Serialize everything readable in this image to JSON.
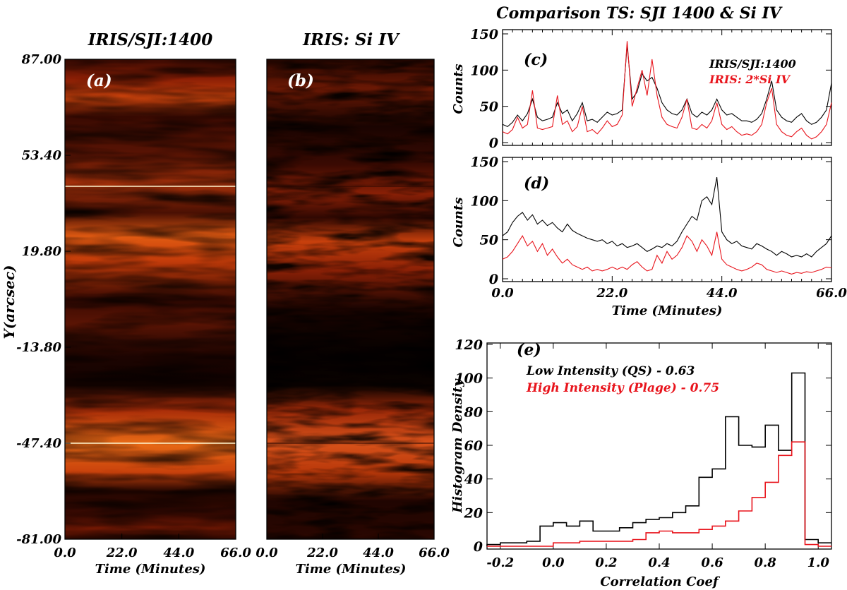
{
  "figure": {
    "title_left_a": "IRIS/SJI:1400",
    "title_left_b": "IRIS: Si IV",
    "title_right": "Comparison TS: SJI 1400 & Si IV",
    "y_axis_label": "Y(arcsec)"
  },
  "colors": {
    "black": "#000000",
    "red": "#e8141c"
  },
  "chart_data": [
    {
      "id": "a",
      "type": "heatmap",
      "panel_label": "(a)",
      "title": "IRIS/SJI:1400",
      "xlabel": "Time (Minutes)",
      "ylabel": "Y(arcsec)",
      "xlim": [
        0,
        66
      ],
      "ylim": [
        -81,
        87
      ],
      "x_ticks": [
        "0.0",
        "22.0",
        "44.0",
        "66.0"
      ],
      "y_ticks": [
        "87.00",
        "53.40",
        "19.80",
        "-13.80",
        "-47.40",
        "-81.00"
      ],
      "colormap": "hot (black-red-yellow-white)"
    },
    {
      "id": "b",
      "type": "heatmap",
      "panel_label": "(b)",
      "title": "IRIS: Si IV",
      "xlabel": "Time (Minutes)",
      "xlim": [
        0,
        66
      ],
      "ylim": [
        -81,
        87
      ],
      "x_ticks": [
        "0.0",
        "22.0",
        "44.0",
        "66.0"
      ],
      "colormap": "hot (black-red-yellow-white)"
    },
    {
      "id": "c",
      "type": "line",
      "panel_label": "(c)",
      "title": "Comparison TS: SJI 1400 & Si IV",
      "ylabel": "Counts",
      "xlim": [
        0,
        66
      ],
      "ylim": [
        0,
        150
      ],
      "y_ticks": [
        "0",
        "50",
        "100",
        "150"
      ],
      "legend": [
        "IRIS/SJI:1400",
        "IRIS: 2*Si IV"
      ],
      "x": [
        0,
        1,
        2,
        3,
        4,
        5,
        6,
        7,
        8,
        9,
        10,
        11,
        12,
        13,
        14,
        15,
        16,
        17,
        18,
        19,
        20,
        21,
        22,
        23,
        24,
        25,
        26,
        27,
        28,
        29,
        30,
        31,
        32,
        33,
        34,
        35,
        36,
        37,
        38,
        39,
        40,
        41,
        42,
        43,
        44,
        45,
        46,
        47,
        48,
        49,
        50,
        51,
        52,
        53,
        54,
        55,
        56,
        57,
        58,
        59,
        60,
        61,
        62,
        63,
        64,
        65,
        66
      ],
      "series": [
        {
          "name": "IRIS/SJI:1400",
          "color": "#000000",
          "values": [
            25,
            22,
            28,
            38,
            30,
            40,
            60,
            35,
            30,
            32,
            35,
            55,
            40,
            45,
            30,
            40,
            55,
            30,
            32,
            28,
            35,
            42,
            38,
            40,
            45,
            135,
            60,
            70,
            95,
            85,
            90,
            75,
            55,
            45,
            40,
            38,
            45,
            60,
            40,
            35,
            42,
            38,
            45,
            60,
            45,
            38,
            40,
            35,
            30,
            30,
            28,
            32,
            40,
            60,
            85,
            45,
            35,
            30,
            28,
            35,
            40,
            30,
            25,
            28,
            35,
            45,
            82
          ]
        },
        {
          "name": "IRIS: 2*Si IV",
          "color": "#e8141c",
          "values": [
            15,
            12,
            18,
            35,
            20,
            25,
            72,
            20,
            18,
            20,
            22,
            65,
            25,
            30,
            15,
            22,
            50,
            15,
            18,
            12,
            20,
            30,
            22,
            25,
            38,
            140,
            50,
            75,
            100,
            65,
            115,
            65,
            35,
            25,
            22,
            20,
            35,
            60,
            20,
            18,
            25,
            20,
            30,
            55,
            25,
            18,
            22,
            15,
            10,
            12,
            10,
            15,
            25,
            55,
            75,
            25,
            15,
            10,
            8,
            15,
            20,
            10,
            5,
            8,
            15,
            25,
            55
          ]
        }
      ]
    },
    {
      "id": "d",
      "type": "line",
      "panel_label": "(d)",
      "ylabel": "Counts",
      "xlabel": "Time (Minutes)",
      "xlim": [
        0,
        66
      ],
      "ylim": [
        0,
        150
      ],
      "x_ticks": [
        "0.0",
        "22.0",
        "44.0",
        "66.0"
      ],
      "y_ticks": [
        "0",
        "50",
        "100",
        "150"
      ],
      "x": [
        0,
        1,
        2,
        3,
        4,
        5,
        6,
        7,
        8,
        9,
        10,
        11,
        12,
        13,
        14,
        15,
        16,
        17,
        18,
        19,
        20,
        21,
        22,
        23,
        24,
        25,
        26,
        27,
        28,
        29,
        30,
        31,
        32,
        33,
        34,
        35,
        36,
        37,
        38,
        39,
        40,
        41,
        42,
        43,
        44,
        45,
        46,
        47,
        48,
        49,
        50,
        51,
        52,
        53,
        54,
        55,
        56,
        57,
        58,
        59,
        60,
        61,
        62,
        63,
        64,
        65,
        66
      ],
      "series": [
        {
          "name": "IRIS/SJI:1400",
          "color": "#000000",
          "values": [
            55,
            60,
            72,
            80,
            85,
            75,
            82,
            70,
            75,
            68,
            72,
            65,
            60,
            70,
            62,
            58,
            55,
            52,
            50,
            48,
            50,
            45,
            48,
            42,
            45,
            40,
            42,
            45,
            40,
            35,
            38,
            42,
            40,
            45,
            42,
            48,
            60,
            70,
            80,
            75,
            100,
            105,
            95,
            130,
            60,
            50,
            45,
            48,
            42,
            40,
            38,
            45,
            42,
            38,
            35,
            30,
            35,
            32,
            28,
            30,
            28,
            32,
            28,
            35,
            40,
            45,
            55
          ]
        },
        {
          "name": "IRIS: 2*Si IV",
          "color": "#e8141c",
          "values": [
            25,
            28,
            35,
            45,
            55,
            42,
            48,
            35,
            45,
            30,
            38,
            28,
            20,
            25,
            18,
            15,
            12,
            15,
            10,
            12,
            10,
            12,
            15,
            12,
            15,
            12,
            18,
            22,
            15,
            10,
            12,
            30,
            20,
            35,
            25,
            30,
            40,
            55,
            48,
            35,
            50,
            42,
            30,
            60,
            25,
            18,
            15,
            12,
            10,
            12,
            15,
            20,
            18,
            12,
            10,
            8,
            10,
            8,
            6,
            8,
            7,
            9,
            8,
            10,
            12,
            15,
            14
          ]
        }
      ]
    },
    {
      "id": "e",
      "type": "bar",
      "subtype": "step-histogram",
      "panel_label": "(e)",
      "xlabel": "Correlation Coef",
      "ylabel": "Histogram Density",
      "xlim": [
        -0.25,
        1.05
      ],
      "ylim": [
        0,
        120
      ],
      "x_ticks": [
        "-0.2",
        "0.0",
        "0.2",
        "0.4",
        "0.6",
        "0.8",
        "1.0"
      ],
      "y_ticks": [
        "0",
        "20",
        "40",
        "60",
        "80",
        "100",
        "120"
      ],
      "bin_edges": [
        -0.25,
        -0.2,
        -0.15,
        -0.1,
        -0.05,
        0.0,
        0.05,
        0.1,
        0.15,
        0.2,
        0.25,
        0.3,
        0.35,
        0.4,
        0.45,
        0.5,
        0.55,
        0.6,
        0.65,
        0.7,
        0.75,
        0.8,
        0.85,
        0.9,
        0.95,
        1.0,
        1.05
      ],
      "series": [
        {
          "name": "Low Intensity (QS) - 0.63",
          "color": "#000000",
          "values": [
            1,
            2,
            2,
            3,
            12,
            14,
            12,
            15,
            9,
            9,
            11,
            14,
            16,
            17,
            20,
            24,
            41,
            46,
            77,
            60,
            59,
            72,
            57,
            103,
            4,
            2
          ]
        },
        {
          "name": "High Intensity (Plage) - 0.75",
          "color": "#e8141c",
          "values": [
            0,
            0,
            0,
            0,
            0,
            2,
            2,
            3,
            3,
            3,
            3,
            4,
            8,
            9,
            8,
            8,
            10,
            12,
            15,
            21,
            29,
            38,
            54,
            62,
            1,
            0
          ]
        }
      ]
    }
  ]
}
